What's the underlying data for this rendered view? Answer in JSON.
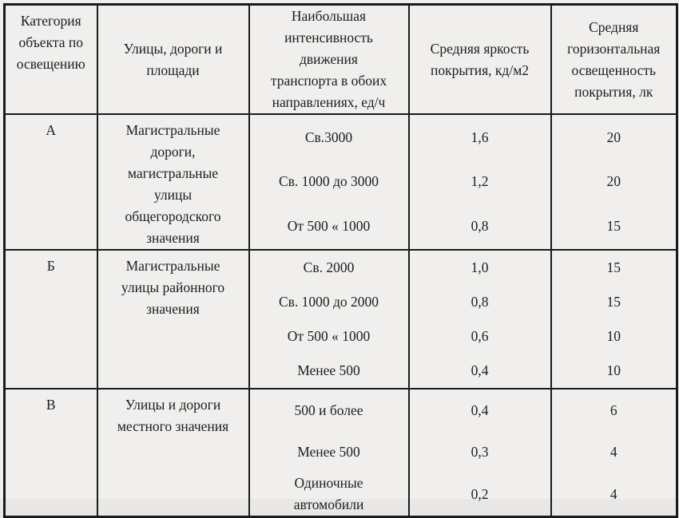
{
  "table": {
    "headers": {
      "category": "Категория\nобъекта по\nосвещению",
      "streets": "Улицы, дороги и\nплощади",
      "intensity": "Наибольшая\nинтенсивность\nдвижения\nтранспорта в обоих\nнаправлениях, ед/ч",
      "luminance": "Средняя яркость\nпокрытия, кд/м2",
      "illuminance": "Средняя\nгоризонтальная\nосвещенность\nпокрытия, лк"
    },
    "groups": [
      {
        "category": "А",
        "streets": "Магистральные\nдороги,\nмагистральные\nулицы\nобщегородского\nзначения",
        "rows": [
          {
            "intensity": "Св.3000",
            "luminance": "1,6",
            "illuminance": "20"
          },
          {
            "intensity": "Св. 1000 до 3000",
            "luminance": "1,2",
            "illuminance": "20"
          },
          {
            "intensity": "От 500 « 1000",
            "luminance": "0,8",
            "illuminance": "15"
          }
        ]
      },
      {
        "category": "Б",
        "streets": "Магистральные\nулицы районного\nзначения",
        "rows": [
          {
            "intensity": "Св. 2000",
            "luminance": "1,0",
            "illuminance": "15"
          },
          {
            "intensity": "Св. 1000 до 2000",
            "luminance": "0,8",
            "illuminance": "15"
          },
          {
            "intensity": "От 500 « 1000",
            "luminance": "0,6",
            "illuminance": "10"
          },
          {
            "intensity": "Менее 500",
            "luminance": "0,4",
            "illuminance": "10"
          }
        ]
      },
      {
        "category": "В",
        "streets": "Улицы и дороги\nместного значения",
        "rows": [
          {
            "intensity": "500 и более",
            "luminance": "0,4",
            "illuminance": "6"
          },
          {
            "intensity": "Менее 500",
            "luminance": "0,3",
            "illuminance": "4"
          },
          {
            "intensity": "Одиночные\nавтомобили",
            "luminance": "0,2",
            "illuminance": "4"
          }
        ]
      }
    ]
  },
  "colors": {
    "page_background": "#f0efed",
    "border": "#1b1b1b",
    "text": "#1d1d1d"
  }
}
